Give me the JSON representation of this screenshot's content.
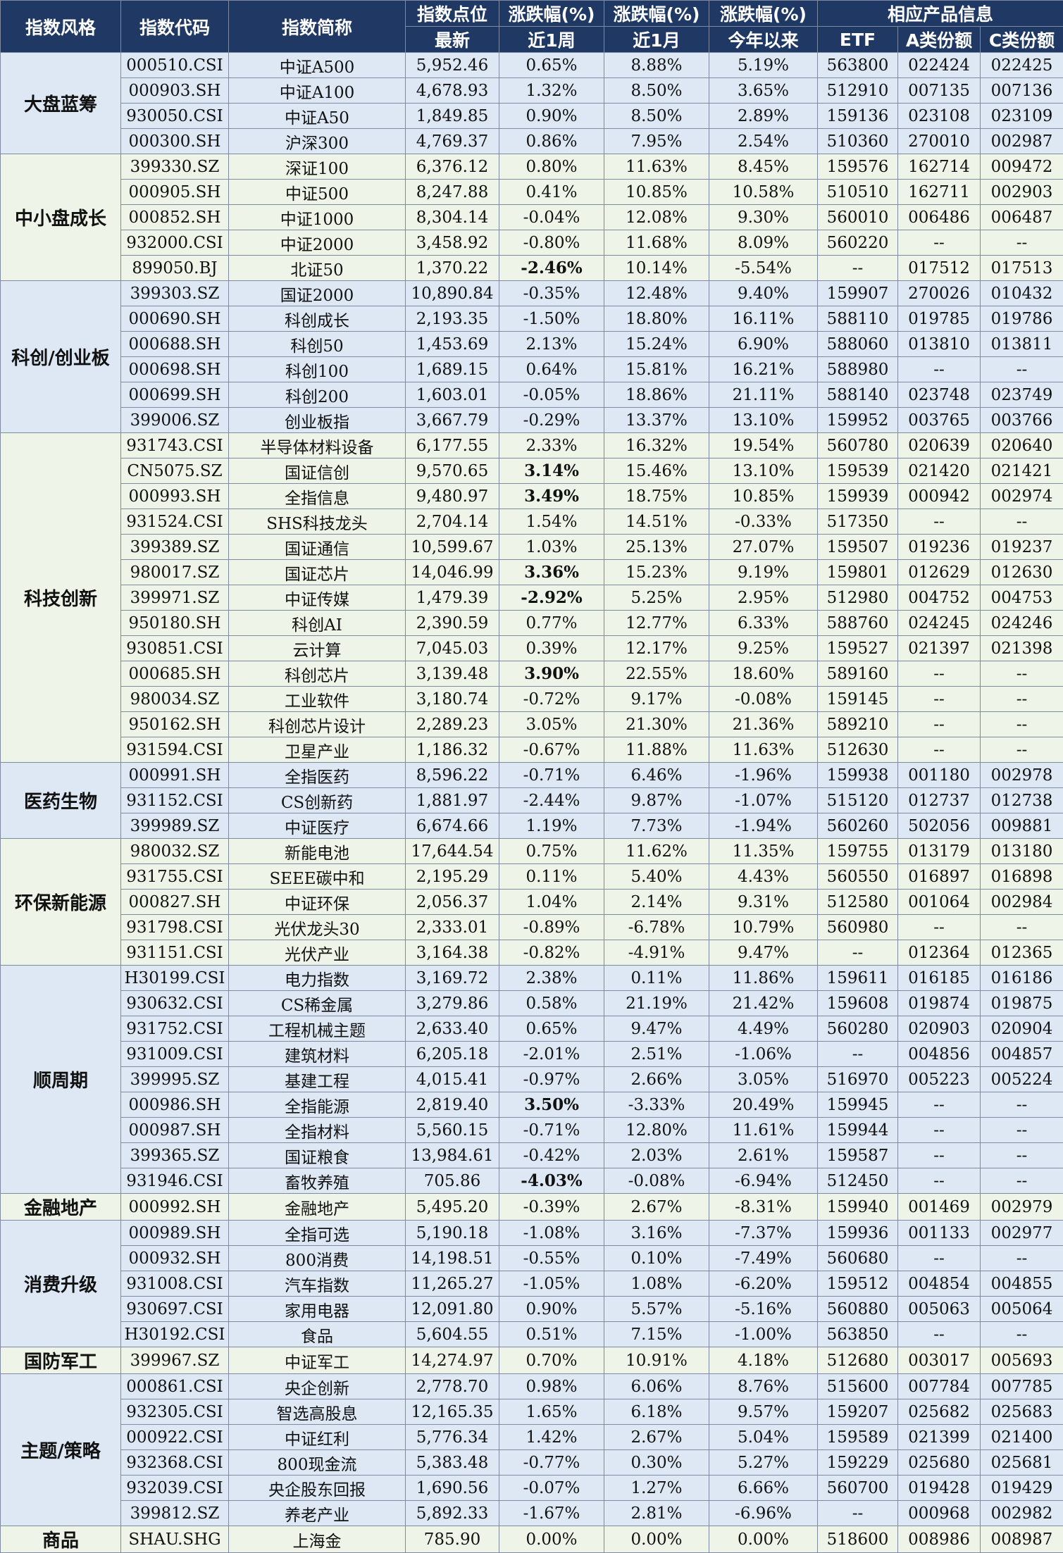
{
  "header": {
    "style": "指数风格",
    "code": "指数代码",
    "name": "指数简称",
    "points": "指数点位",
    "points_sub": "最新",
    "chg1": "涨跌幅(%)",
    "chg1_sub": "近1周",
    "chg2": "涨跌幅(%)",
    "chg2_sub": "近1月",
    "chg3": "涨跌幅(%)",
    "chg3_sub": "今年以来",
    "product": "相应产品信息",
    "etf": "ETF",
    "a_share": "A类份额",
    "c_share": "C类份额"
  },
  "colors": {
    "up": "#e0121a",
    "down": "#6ab344",
    "header_bg": "#1f3864"
  },
  "groups": [
    {
      "name": "大盘蓝筹",
      "rows": [
        [
          "000510.CSI",
          "中证A500",
          "5,952.46",
          "0.65%",
          "8.88%",
          "5.19%",
          "563800",
          "022424",
          "022425",
          ""
        ],
        [
          "000903.SH",
          "中证A100",
          "4,678.93",
          "1.32%",
          "8.50%",
          "3.65%",
          "512910",
          "007135",
          "007136",
          ""
        ],
        [
          "930050.CSI",
          "中证A50",
          "1,849.85",
          "0.90%",
          "8.50%",
          "2.89%",
          "159136",
          "023108",
          "023109",
          ""
        ],
        [
          "000300.SH",
          "沪深300",
          "4,769.37",
          "0.86%",
          "7.95%",
          "2.54%",
          "510360",
          "270010",
          "002987",
          ""
        ]
      ]
    },
    {
      "name": "中小盘成长",
      "rows": [
        [
          "399330.SZ",
          "深证100",
          "6,376.12",
          "0.80%",
          "11.63%",
          "8.45%",
          "159576",
          "162714",
          "009472",
          ""
        ],
        [
          "000905.SH",
          "中证500",
          "8,247.88",
          "0.41%",
          "10.85%",
          "10.58%",
          "510510",
          "162711",
          "002903",
          ""
        ],
        [
          "000852.SH",
          "中证1000",
          "8,304.14",
          "-0.04%",
          "12.08%",
          "9.30%",
          "560010",
          "006486",
          "006487",
          ""
        ],
        [
          "932000.CSI",
          "中证2000",
          "3,458.92",
          "-0.80%",
          "11.68%",
          "8.09%",
          "560220",
          "--",
          "--",
          ""
        ],
        [
          "899050.BJ",
          "北证50",
          "1,370.22",
          "-2.46%",
          "10.14%",
          "-5.54%",
          "--",
          "017512",
          "017513",
          "down"
        ]
      ]
    },
    {
      "name": "科创/创业板",
      "rows": [
        [
          "399303.SZ",
          "国证2000",
          "10,890.84",
          "-0.35%",
          "12.48%",
          "9.40%",
          "159907",
          "270026",
          "010432",
          ""
        ],
        [
          "000690.SH",
          "科创成长",
          "2,193.35",
          "-1.50%",
          "18.80%",
          "16.11%",
          "588110",
          "019785",
          "019786",
          ""
        ],
        [
          "000688.SH",
          "科创50",
          "1,453.69",
          "2.13%",
          "15.24%",
          "6.90%",
          "588060",
          "013810",
          "013811",
          ""
        ],
        [
          "000698.SH",
          "科创100",
          "1,689.15",
          "0.64%",
          "15.81%",
          "16.21%",
          "588980",
          "--",
          "--",
          ""
        ],
        [
          "000699.SH",
          "科创200",
          "1,603.01",
          "-0.05%",
          "18.86%",
          "21.11%",
          "588140",
          "023748",
          "023749",
          ""
        ],
        [
          "399006.SZ",
          "创业板指",
          "3,667.79",
          "-0.29%",
          "13.37%",
          "13.10%",
          "159952",
          "003765",
          "003766",
          ""
        ]
      ]
    },
    {
      "name": "科技创新",
      "rows": [
        [
          "931743.CSI",
          "半导体材料设备",
          "6,177.55",
          "2.33%",
          "16.32%",
          "19.54%",
          "560780",
          "020639",
          "020640",
          ""
        ],
        [
          "CN5075.SZ",
          "国证信创",
          "9,570.65",
          "3.14%",
          "15.46%",
          "13.10%",
          "159539",
          "021420",
          "021421",
          "up"
        ],
        [
          "000993.SH",
          "全指信息",
          "9,480.97",
          "3.49%",
          "18.75%",
          "10.85%",
          "159939",
          "000942",
          "002974",
          "up"
        ],
        [
          "931524.CSI",
          "SHS科技龙头",
          "2,704.14",
          "1.54%",
          "14.51%",
          "-0.33%",
          "517350",
          "--",
          "--",
          ""
        ],
        [
          "399389.SZ",
          "国证通信",
          "10,599.67",
          "1.03%",
          "25.13%",
          "27.07%",
          "159507",
          "019236",
          "019237",
          ""
        ],
        [
          "980017.SZ",
          "国证芯片",
          "14,046.99",
          "3.36%",
          "15.23%",
          "9.19%",
          "159801",
          "012629",
          "012630",
          "up"
        ],
        [
          "399971.SZ",
          "中证传媒",
          "1,479.39",
          "-2.92%",
          "5.25%",
          "2.95%",
          "512980",
          "004752",
          "004753",
          "down"
        ],
        [
          "950180.SH",
          "科创AI",
          "2,390.59",
          "0.77%",
          "12.77%",
          "6.33%",
          "588760",
          "024245",
          "024246",
          ""
        ],
        [
          "930851.CSI",
          "云计算",
          "7,045.03",
          "0.39%",
          "12.17%",
          "9.25%",
          "159527",
          "021397",
          "021398",
          ""
        ],
        [
          "000685.SH",
          "科创芯片",
          "3,139.48",
          "3.90%",
          "22.55%",
          "18.60%",
          "589160",
          "--",
          "--",
          "up"
        ],
        [
          "980034.SZ",
          "工业软件",
          "3,180.74",
          "-0.72%",
          "9.17%",
          "-0.08%",
          "159145",
          "--",
          "--",
          ""
        ],
        [
          "950162.SH",
          "科创芯片设计",
          "2,289.23",
          "3.05%",
          "21.30%",
          "21.36%",
          "589210",
          "--",
          "--",
          ""
        ],
        [
          "931594.CSI",
          "卫星产业",
          "1,186.32",
          "-0.67%",
          "11.88%",
          "11.63%",
          "512630",
          "--",
          "--",
          ""
        ]
      ]
    },
    {
      "name": "医药生物",
      "rows": [
        [
          "000991.SH",
          "全指医药",
          "8,596.22",
          "-0.71%",
          "6.46%",
          "-1.96%",
          "159938",
          "001180",
          "002978",
          ""
        ],
        [
          "931152.CSI",
          "CS创新药",
          "1,881.97",
          "-2.44%",
          "9.87%",
          "-1.07%",
          "515120",
          "012737",
          "012738",
          ""
        ],
        [
          "399989.SZ",
          "中证医疗",
          "6,674.66",
          "1.19%",
          "7.73%",
          "-1.94%",
          "560260",
          "502056",
          "009881",
          ""
        ]
      ]
    },
    {
      "name": "环保新能源",
      "rows": [
        [
          "980032.SZ",
          "新能电池",
          "17,644.54",
          "0.75%",
          "11.62%",
          "11.35%",
          "159755",
          "013179",
          "013180",
          ""
        ],
        [
          "931755.CSI",
          "SEEE碳中和",
          "2,195.29",
          "0.11%",
          "5.40%",
          "4.43%",
          "560550",
          "016897",
          "016898",
          ""
        ],
        [
          "000827.SH",
          "中证环保",
          "2,056.37",
          "1.04%",
          "2.14%",
          "9.31%",
          "512580",
          "001064",
          "002984",
          ""
        ],
        [
          "931798.CSI",
          "光伏龙头30",
          "2,333.01",
          "-0.89%",
          "-6.78%",
          "10.79%",
          "560980",
          "--",
          "--",
          ""
        ],
        [
          "931151.CSI",
          "光伏产业",
          "3,164.38",
          "-0.82%",
          "-4.91%",
          "9.47%",
          "--",
          "012364",
          "012365",
          ""
        ]
      ]
    },
    {
      "name": "顺周期",
      "rows": [
        [
          "H30199.CSI",
          "电力指数",
          "3,169.72",
          "2.38%",
          "0.11%",
          "11.86%",
          "159611",
          "016185",
          "016186",
          ""
        ],
        [
          "930632.CSI",
          "CS稀金属",
          "3,279.86",
          "0.58%",
          "21.19%",
          "21.42%",
          "159608",
          "019874",
          "019875",
          ""
        ],
        [
          "931752.CSI",
          "工程机械主题",
          "2,633.40",
          "0.65%",
          "9.47%",
          "4.49%",
          "560280",
          "020903",
          "020904",
          ""
        ],
        [
          "931009.CSI",
          "建筑材料",
          "6,205.18",
          "-2.01%",
          "2.51%",
          "-1.06%",
          "--",
          "004856",
          "004857",
          ""
        ],
        [
          "399995.SZ",
          "基建工程",
          "4,015.41",
          "-0.97%",
          "2.66%",
          "3.05%",
          "516970",
          "005223",
          "005224",
          ""
        ],
        [
          "000986.SH",
          "全指能源",
          "2,819.40",
          "3.50%",
          "-3.33%",
          "20.49%",
          "159945",
          "--",
          "--",
          "up"
        ],
        [
          "000987.SH",
          "全指材料",
          "5,560.15",
          "-0.71%",
          "12.80%",
          "11.61%",
          "159944",
          "--",
          "--",
          ""
        ],
        [
          "399365.SZ",
          "国证粮食",
          "13,984.61",
          "-0.42%",
          "2.03%",
          "2.61%",
          "159587",
          "--",
          "--",
          ""
        ],
        [
          "931946.CSI",
          "畜牧养殖",
          "705.86",
          "-4.03%",
          "-0.08%",
          "-6.94%",
          "512450",
          "--",
          "--",
          "down"
        ]
      ]
    },
    {
      "name": "金融地产",
      "rows": [
        [
          "000992.SH",
          "金融地产",
          "5,495.20",
          "-0.39%",
          "2.67%",
          "-8.31%",
          "159940",
          "001469",
          "002979",
          ""
        ]
      ]
    },
    {
      "name": "消费升级",
      "rows": [
        [
          "000989.SH",
          "全指可选",
          "5,190.18",
          "-1.08%",
          "3.16%",
          "-7.37%",
          "159936",
          "001133",
          "002977",
          ""
        ],
        [
          "000932.SH",
          "800消费",
          "14,198.51",
          "-0.55%",
          "0.10%",
          "-7.49%",
          "560680",
          "--",
          "--",
          ""
        ],
        [
          "931008.CSI",
          "汽车指数",
          "11,265.27",
          "-1.05%",
          "1.08%",
          "-6.20%",
          "159512",
          "004854",
          "004855",
          ""
        ],
        [
          "930697.CSI",
          "家用电器",
          "12,091.80",
          "0.90%",
          "5.57%",
          "-5.16%",
          "560880",
          "005063",
          "005064",
          ""
        ],
        [
          "H30192.CSI",
          "食品",
          "5,604.55",
          "0.51%",
          "7.15%",
          "-1.00%",
          "563850",
          "--",
          "--",
          ""
        ]
      ]
    },
    {
      "name": "国防军工",
      "rows": [
        [
          "399967.SZ",
          "中证军工",
          "14,274.97",
          "0.70%",
          "10.91%",
          "4.18%",
          "512680",
          "003017",
          "005693",
          ""
        ]
      ]
    },
    {
      "name": "主题/策略",
      "rows": [
        [
          "000861.CSI",
          "央企创新",
          "2,778.70",
          "0.98%",
          "6.06%",
          "8.76%",
          "515600",
          "007784",
          "007785",
          ""
        ],
        [
          "932305.CSI",
          "智选高股息",
          "12,165.35",
          "1.65%",
          "6.18%",
          "9.57%",
          "159207",
          "025682",
          "025683",
          ""
        ],
        [
          "000922.CSI",
          "中证红利",
          "5,776.34",
          "1.42%",
          "2.67%",
          "5.04%",
          "159589",
          "021399",
          "021400",
          ""
        ],
        [
          "932368.CSI",
          "800现金流",
          "5,383.48",
          "-0.77%",
          "0.30%",
          "5.27%",
          "159229",
          "025680",
          "025681",
          ""
        ],
        [
          "932039.CSI",
          "央企股东回报",
          "1,690.56",
          "-0.07%",
          "1.27%",
          "6.66%",
          "560700",
          "019428",
          "019429",
          ""
        ],
        [
          "399812.SZ",
          "养老产业",
          "5,892.33",
          "-1.67%",
          "2.81%",
          "-6.96%",
          "--",
          "000968",
          "002982",
          ""
        ]
      ]
    },
    {
      "name": "商品",
      "rows": [
        [
          "SHAU.SHG",
          "上海金",
          "785.90",
          "0.00%",
          "0.00%",
          "0.00%",
          "518600",
          "008986",
          "008987",
          ""
        ]
      ]
    }
  ]
}
